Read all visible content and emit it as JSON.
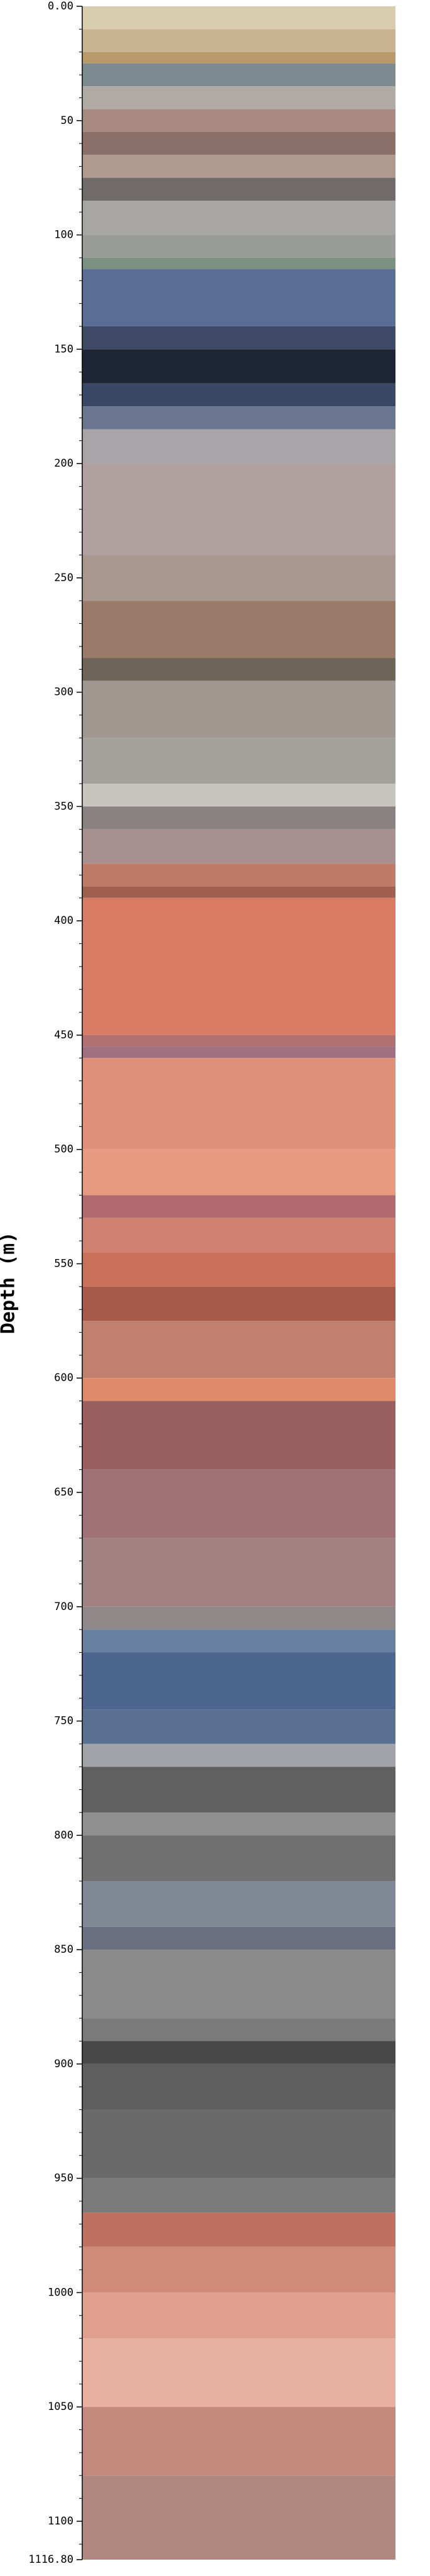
{
  "chart_data": {
    "type": "strip",
    "y_label": "Depth (m)",
    "ylim": [
      0,
      1116.8
    ],
    "inverted": true,
    "yticks": [
      {
        "value": 0,
        "label": "0.00"
      },
      50,
      100,
      150,
      200,
      250,
      300,
      350,
      400,
      450,
      500,
      550,
      600,
      650,
      700,
      750,
      800,
      850,
      900,
      950,
      1000,
      1050,
      1100,
      {
        "value": 1116.8,
        "label": "1116.80"
      }
    ],
    "minor_yticks": [
      10,
      20,
      30,
      40,
      60,
      70,
      80,
      90,
      110,
      120,
      130,
      140,
      160,
      170,
      180,
      190,
      210,
      220,
      230,
      240,
      260,
      270,
      280,
      290,
      310,
      320,
      330,
      340,
      360,
      370,
      380,
      390,
      410,
      420,
      430,
      440,
      460,
      470,
      480,
      490,
      510,
      520,
      530,
      540,
      560,
      570,
      580,
      590,
      610,
      620,
      630,
      640,
      660,
      670,
      680,
      690,
      710,
      720,
      730,
      740,
      760,
      770,
      780,
      790,
      810,
      820,
      830,
      840,
      860,
      870,
      880,
      890,
      910,
      920,
      930,
      940,
      960,
      970,
      980,
      990,
      1010,
      1020,
      1030,
      1040,
      1060,
      1070,
      1080,
      1090,
      1110
    ],
    "depths": [
      0,
      10,
      20,
      25,
      35,
      45,
      55,
      65,
      75,
      85,
      100,
      110,
      115,
      140,
      150,
      165,
      175,
      185,
      200,
      240,
      260,
      285,
      295,
      320,
      340,
      350,
      360,
      375,
      385,
      390,
      450,
      455,
      460,
      500,
      520,
      530,
      545,
      560,
      575,
      600,
      610,
      640,
      670,
      700,
      710,
      720,
      745,
      760,
      770,
      790,
      800,
      820,
      840,
      850,
      880,
      890,
      900,
      920,
      950,
      965,
      980,
      1000,
      1020,
      1050,
      1080,
      1116.8
    ],
    "colors": [
      "#d9cdb0",
      "#c8b490",
      "#b89a6a",
      "#7d8a90",
      "#b0aaa5",
      "#a88a80",
      "#8a7068",
      "#b09a90",
      "#706a68",
      "#a8a6a2",
      "#9a9c98",
      "#7a9080",
      "#5a6e95",
      "#3e4a65",
      "#1e2535",
      "#3a4866",
      "#6a7590",
      "#a8a4a8",
      "#b0a0a0",
      "#a89890",
      "#9a7a68",
      "#6e6458",
      "#a09890",
      "#a4a09c",
      "#c8c4be",
      "#8a8280",
      "#a89090",
      "#c07a68",
      "#a06050",
      "#d87c64",
      "#b07070",
      "#a07080",
      "#e09078",
      "#e89a80",
      "#b06a70",
      "#d08070",
      "#c87058",
      "#a85a4a",
      "#c08070",
      "#e08a6c",
      "#9a6060",
      "#a07278",
      "#a08080",
      "#908888",
      "#6880a0",
      "#4c6690",
      "#5a7090",
      "#a0a4a8",
      "#606060",
      "#909090",
      "#707070",
      "#808896",
      "#6a7080",
      "#8a8a8a",
      "#7a7a7a",
      "#484848",
      "#5e5e5e",
      "#6a6a6a",
      "#7a7a7a",
      "#c07060",
      "#d08a7a",
      "#e0a090",
      "#e8b0a0",
      "#c48a7e",
      "#b08880"
    ]
  }
}
